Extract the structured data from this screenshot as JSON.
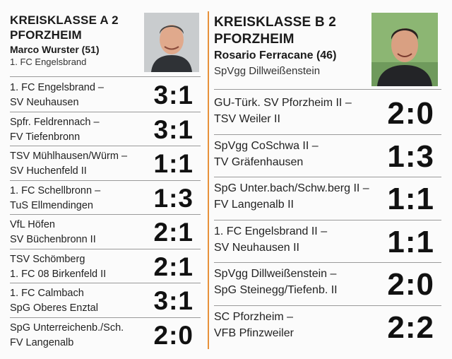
{
  "left": {
    "title_line1": "KREISKLASSE A 2",
    "title_line2": "PFORZHEIM",
    "coach": "Marco Wurster (51)",
    "club": "1. FC Engelsbrand",
    "matches": [
      {
        "home": "1. FC Engelsbrand –",
        "away": "SV Neuhausen",
        "score": "3:1"
      },
      {
        "home": "Spfr. Feldrennach –",
        "away": "FV Tiefenbronn",
        "score": "3:1"
      },
      {
        "home": "TSV Mühlhausen/Würm –",
        "away": "SV Huchenfeld II",
        "score": "1:1"
      },
      {
        "home": "1. FC Schellbronn –",
        "away": "TuS Ellmendingen",
        "score": "1:3"
      },
      {
        "home": "VfL Höfen",
        "away": "SV Büchenbronn II",
        "score": "2:1"
      },
      {
        "home": "TSV Schömberg",
        "away": "1. FC 08 Birkenfeld II",
        "score": "2:1"
      },
      {
        "home": "1. FC Calmbach",
        "away": "SpG Oberes Enztal",
        "score": "3:1"
      },
      {
        "home": "SpG Unterreichenb./Sch.",
        "away": "FV Langenalb",
        "score": "2:0"
      }
    ]
  },
  "right": {
    "title_line1": "KREISKLASSE B 2",
    "title_line2": "PFORZHEIM",
    "coach": "Rosario Ferracane (46)",
    "club": "SpVgg Dillweißenstein",
    "matches": [
      {
        "home": "GU-Türk. SV Pforzheim II –",
        "away": "TSV Weiler II",
        "score": "2:0"
      },
      {
        "home": "SpVgg CoSchwa II –",
        "away": "TV Gräfenhausen",
        "score": "1:3"
      },
      {
        "home": "SpG Unter.bach/Schw.berg II –",
        "away": "FV Langenalb II",
        "score": "1:1"
      },
      {
        "home": "1. FC Engelsbrand II –",
        "away": "SV Neuhausen II",
        "score": "1:1"
      },
      {
        "home": "SpVgg Dillweißenstein –",
        "away": "SpG Steinegg/Tiefenb. II",
        "score": "2:0"
      },
      {
        "home": "SC Pforzheim –",
        "away": "VFB Pfinzweiler",
        "score": "2:2"
      }
    ]
  },
  "colors": {
    "divider": "#e8913a"
  }
}
